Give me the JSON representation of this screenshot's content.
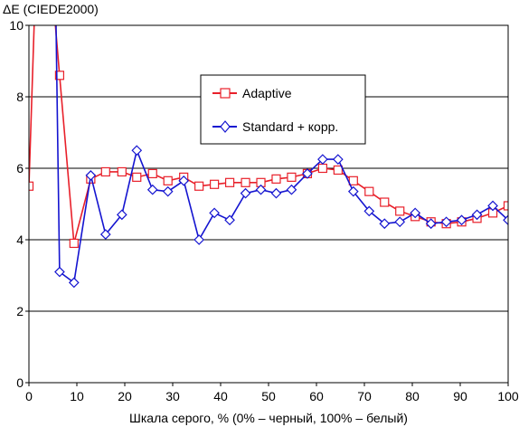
{
  "chart_data": {
    "type": "line",
    "ylabel": "ΔE (CIEDE2000)",
    "xlabel": "Шкала серого, % (0% – черный, 100% – белый)",
    "xlim": [
      0,
      100
    ],
    "ylim": [
      0,
      10
    ],
    "xticks": [
      0,
      10,
      20,
      30,
      40,
      50,
      60,
      70,
      80,
      90,
      100
    ],
    "yticks": [
      0,
      2,
      4,
      6,
      8,
      10
    ],
    "grid": "horizontal",
    "legend_position": "upper-center",
    "series": [
      {
        "name": "Adaptive",
        "color": "#e8202a",
        "marker": "square",
        "points": [
          [
            0,
            5.5
          ],
          [
            1.2,
            10.5
          ],
          [
            5.2,
            10.5
          ],
          [
            6.4,
            8.6
          ],
          [
            9.4,
            3.9
          ],
          [
            12.9,
            5.7
          ],
          [
            16,
            5.9
          ],
          [
            19.4,
            5.9
          ],
          [
            22.5,
            5.75
          ],
          [
            25.8,
            5.85
          ],
          [
            29,
            5.65
          ],
          [
            32.3,
            5.75
          ],
          [
            35.5,
            5.5
          ],
          [
            38.7,
            5.55
          ],
          [
            41.9,
            5.6
          ],
          [
            45.2,
            5.6
          ],
          [
            48.4,
            5.6
          ],
          [
            51.6,
            5.7
          ],
          [
            54.8,
            5.75
          ],
          [
            58.1,
            5.85
          ],
          [
            61.3,
            6.0
          ],
          [
            64.5,
            5.95
          ],
          [
            67.7,
            5.65
          ],
          [
            71,
            5.35
          ],
          [
            74.2,
            5.05
          ],
          [
            77.4,
            4.8
          ],
          [
            80.6,
            4.65
          ],
          [
            83.9,
            4.5
          ],
          [
            87.1,
            4.45
          ],
          [
            90.3,
            4.5
          ],
          [
            93.5,
            4.6
          ],
          [
            96.8,
            4.75
          ],
          [
            100,
            4.95
          ]
        ]
      },
      {
        "name": "Standard + корр.",
        "color": "#1414d0",
        "marker": "diamond",
        "points": [
          [
            5.6,
            10.5
          ],
          [
            6.4,
            3.1
          ],
          [
            9.4,
            2.8
          ],
          [
            12.9,
            5.8
          ],
          [
            16,
            4.15
          ],
          [
            19.4,
            4.7
          ],
          [
            22.5,
            6.5
          ],
          [
            25.8,
            5.4
          ],
          [
            29,
            5.35
          ],
          [
            32.3,
            5.65
          ],
          [
            35.5,
            4.0
          ],
          [
            38.7,
            4.75
          ],
          [
            41.9,
            4.55
          ],
          [
            45.2,
            5.3
          ],
          [
            48.4,
            5.4
          ],
          [
            51.6,
            5.3
          ],
          [
            54.8,
            5.4
          ],
          [
            58.1,
            5.85
          ],
          [
            61.3,
            6.25
          ],
          [
            64.5,
            6.25
          ],
          [
            67.7,
            5.35
          ],
          [
            71,
            4.8
          ],
          [
            74.2,
            4.45
          ],
          [
            77.4,
            4.5
          ],
          [
            80.6,
            4.75
          ],
          [
            83.9,
            4.45
          ],
          [
            87.1,
            4.5
          ],
          [
            90.3,
            4.55
          ],
          [
            93.5,
            4.7
          ],
          [
            96.8,
            4.95
          ],
          [
            100,
            4.55
          ]
        ]
      }
    ]
  }
}
